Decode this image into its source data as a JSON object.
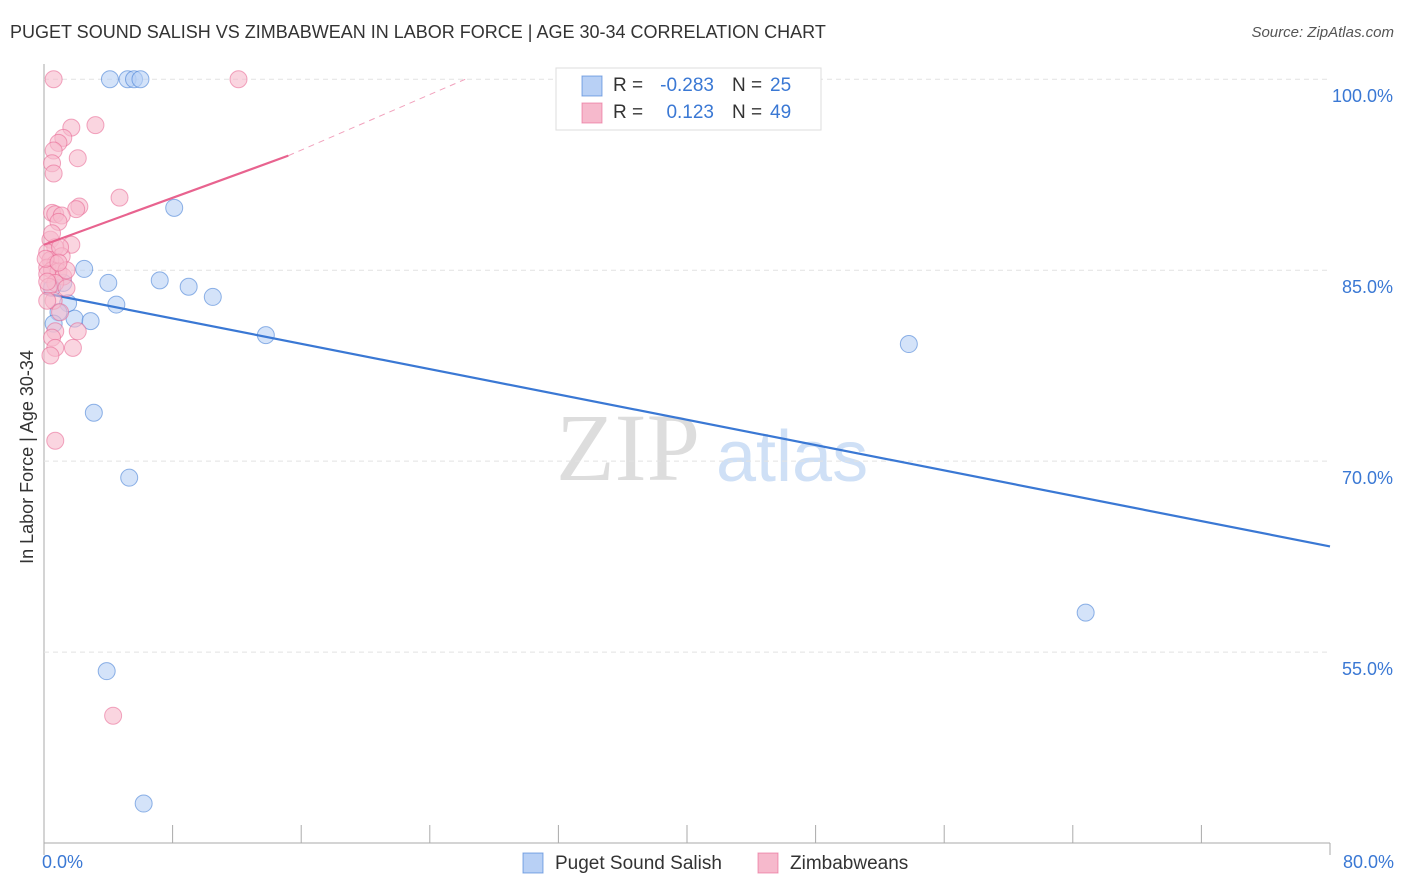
{
  "chart_data": {
    "type": "scatter",
    "title": "PUGET SOUND SALISH VS ZIMBABWEAN IN LABOR FORCE | AGE 30-34 CORRELATION CHART",
    "source": "Source: ZipAtlas.com",
    "y_label": "In Labor Force | Age 30-34",
    "watermark": [
      "ZIP",
      "atlas"
    ],
    "xlim": [
      0,
      80
    ],
    "ylim": [
      40,
      101.2
    ],
    "xticks": [
      {
        "value": 0,
        "label": "0.0%"
      },
      {
        "value": 80,
        "label": "80.0%"
      }
    ],
    "x_minor_ticks": [
      8,
      16,
      24,
      32,
      40,
      48,
      56,
      64,
      72
    ],
    "yticks": [
      {
        "value": 55,
        "label": "55.0%"
      },
      {
        "value": 70,
        "label": "70.0%"
      },
      {
        "value": 85,
        "label": "85.0%"
      },
      {
        "value": 100,
        "label": "100.0%"
      }
    ],
    "grid": true,
    "stat_labels": {
      "r": "R =",
      "n": "N ="
    },
    "series": [
      {
        "name": "Puget Sound Salish",
        "color": "#3a78d4",
        "fill": "#b8d0f5",
        "r": -0.283,
        "n": 25,
        "x": [
          4.1,
          5.2,
          5.6,
          6.0,
          8.1,
          2.5,
          1.2,
          4.0,
          7.2,
          9.0,
          10.5,
          4.5,
          1.5,
          0.9,
          1.9,
          2.9,
          0.6,
          13.8,
          53.8,
          3.1,
          5.3,
          64.8,
          3.9,
          6.2,
          0.5
        ],
        "y": [
          100,
          100,
          100,
          100,
          89.9,
          85.1,
          84.0,
          84.0,
          84.2,
          83.7,
          82.9,
          82.3,
          82.4,
          81.7,
          81.2,
          81.0,
          80.8,
          79.9,
          79.2,
          73.8,
          68.7,
          58.1,
          53.5,
          43.1,
          83.6
        ],
        "trend": {
          "x": [
            0,
            80
          ],
          "y": [
            83.2,
            63.3
          ]
        }
      },
      {
        "name": "Zimbabweans",
        "color": "#e8638f",
        "fill": "#f6b9cc",
        "r": 0.123,
        "n": 49,
        "x": [
          0.6,
          12.1,
          3.2,
          1.7,
          1.2,
          0.9,
          0.6,
          2.1,
          0.5,
          0.6,
          4.7,
          2.2,
          2.0,
          0.5,
          0.7,
          1.1,
          0.9,
          0.4,
          1.7,
          0.7,
          0.2,
          1.1,
          0.4,
          0.7,
          0.2,
          0.5,
          0.9,
          0.2,
          1.2,
          0.7,
          0.3,
          1.4,
          0.6,
          1.0,
          0.7,
          2.1,
          0.5,
          1.8,
          0.7,
          0.4,
          0.7,
          4.3,
          0.1,
          0.2,
          1.0,
          1.4,
          0.2,
          0.9,
          0.5
        ],
        "y": [
          100,
          100,
          96.4,
          96.2,
          95.4,
          95.0,
          94.4,
          93.8,
          93.4,
          92.6,
          90.7,
          90.0,
          89.8,
          89.5,
          89.4,
          89.3,
          88.8,
          87.4,
          87.0,
          86.8,
          86.4,
          86.1,
          85.8,
          85.5,
          85.2,
          85.0,
          84.9,
          84.7,
          84.5,
          84.0,
          83.7,
          83.6,
          82.6,
          81.7,
          80.2,
          80.2,
          79.7,
          78.9,
          78.9,
          78.3,
          71.6,
          50.0,
          85.9,
          84.1,
          86.8,
          85.0,
          82.6,
          85.6,
          87.9
        ],
        "trend": {
          "x": [
            0,
            15.2
          ],
          "y": [
            87.0,
            94.0
          ]
        },
        "trend_extension": {
          "x": [
            15.2,
            26.2
          ],
          "y": [
            94.0,
            100
          ]
        }
      }
    ]
  }
}
